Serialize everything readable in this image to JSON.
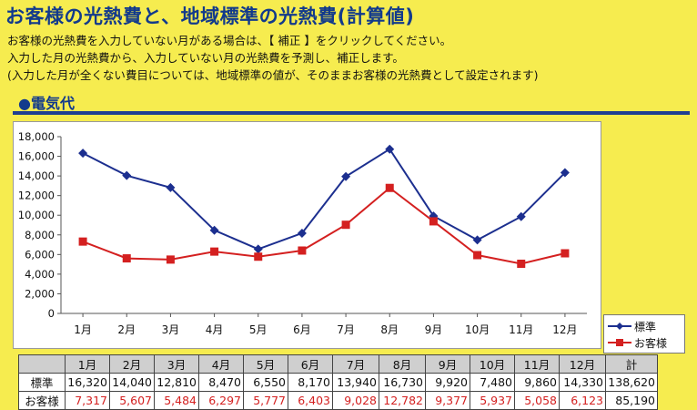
{
  "header": {
    "title": "お客様の光熱費と、地域標準の光熱費(計算値)",
    "line1": "お客様の光熱費を入力していない月がある場合は、【 補正 】をクリックしてください。",
    "line2": "入力した月の光熱費から、入力していない月の光熱費を予測し、補正します。",
    "line3": "(入力した月が全くない費目については、地域標準の値が、そのままお客様の光熱費として設定されます)"
  },
  "section": {
    "title": "●電気代"
  },
  "legend": {
    "standard": "標準",
    "customer": "お客様"
  },
  "colors": {
    "standard": "#1c2f8f",
    "customer": "#d42020",
    "background": "#f6ec4f"
  },
  "table": {
    "header": [
      "1月",
      "2月",
      "3月",
      "4月",
      "5月",
      "6月",
      "7月",
      "8月",
      "9月",
      "10月",
      "11月",
      "12月",
      "計"
    ],
    "rows": [
      {
        "label": "標準",
        "values": [
          "16,320",
          "14,040",
          "12,810",
          "8,470",
          "6,550",
          "8,170",
          "13,940",
          "16,730",
          "9,920",
          "7,480",
          "9,860",
          "14,330",
          "138,620"
        ]
      },
      {
        "label": "お客様",
        "values": [
          "7,317",
          "5,607",
          "5,484",
          "6,297",
          "5,777",
          "6,403",
          "9,028",
          "12,782",
          "9,377",
          "5,937",
          "5,058",
          "6,123",
          "85,190"
        ]
      }
    ]
  },
  "chart_data": {
    "type": "line",
    "categories": [
      "1月",
      "2月",
      "3月",
      "4月",
      "5月",
      "6月",
      "7月",
      "8月",
      "9月",
      "10月",
      "11月",
      "12月"
    ],
    "series": [
      {
        "name": "標準",
        "values": [
          16320,
          14040,
          12810,
          8470,
          6550,
          8170,
          13940,
          16730,
          9920,
          7480,
          9860,
          14330
        ]
      },
      {
        "name": "お客様",
        "values": [
          7317,
          5607,
          5484,
          6297,
          5777,
          6403,
          9028,
          12782,
          9377,
          5937,
          5058,
          6123
        ]
      }
    ],
    "yticks": [
      "0",
      "2,000",
      "4,000",
      "6,000",
      "8,000",
      "10,000",
      "12,000",
      "14,000",
      "16,000",
      "18,000"
    ],
    "ylim": [
      0,
      18000
    ],
    "grid": false,
    "legend": "bottom-right"
  }
}
